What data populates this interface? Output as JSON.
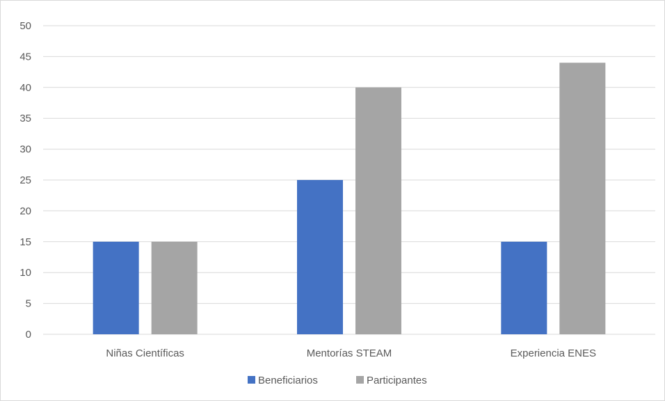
{
  "chart_data": {
    "type": "bar",
    "categories": [
      "Niñas Científicas",
      "Mentorías STEAM",
      "Experiencia ENES"
    ],
    "series": [
      {
        "name": "Beneficiarios",
        "values": [
          15,
          25,
          15
        ],
        "color": "#4472c4"
      },
      {
        "name": "Participantes",
        "values": [
          15,
          40,
          44
        ],
        "color": "#a5a5a5"
      }
    ],
    "ylim": [
      0,
      50
    ],
    "yticks": [
      "0",
      "5",
      "10",
      "15",
      "20",
      "25",
      "30",
      "35",
      "40",
      "45",
      "50"
    ],
    "grid": true,
    "legend_position": "bottom",
    "title": "",
    "xlabel": "",
    "ylabel": ""
  },
  "colors": {
    "gridline": "#d9d9d9",
    "text": "#595959"
  }
}
